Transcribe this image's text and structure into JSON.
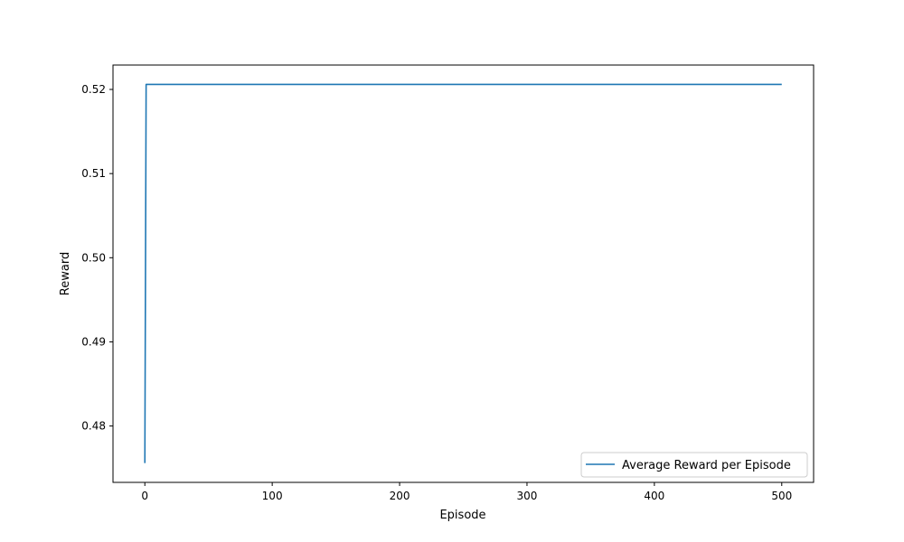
{
  "chart_data": {
    "type": "line",
    "title": "",
    "xlabel": "Episode",
    "ylabel": "Reward",
    "xlim": [
      -25,
      525
    ],
    "ylim": [
      0.4733,
      0.5229
    ],
    "x_ticks": [
      0,
      100,
      200,
      300,
      400,
      500
    ],
    "x_tick_labels": [
      "0",
      "100",
      "200",
      "300",
      "400",
      "500"
    ],
    "y_ticks": [
      0.48,
      0.49,
      0.5,
      0.51,
      0.52
    ],
    "y_tick_labels": [
      "0.48",
      "0.49",
      "0.50",
      "0.51",
      "0.52"
    ],
    "grid": false,
    "legend_position": "lower right",
    "series": [
      {
        "name": "Average Reward per Episode",
        "color": "#1f77b4",
        "x": [
          0,
          1,
          500
        ],
        "y": [
          0.4756,
          0.5206,
          0.5206
        ]
      }
    ]
  }
}
